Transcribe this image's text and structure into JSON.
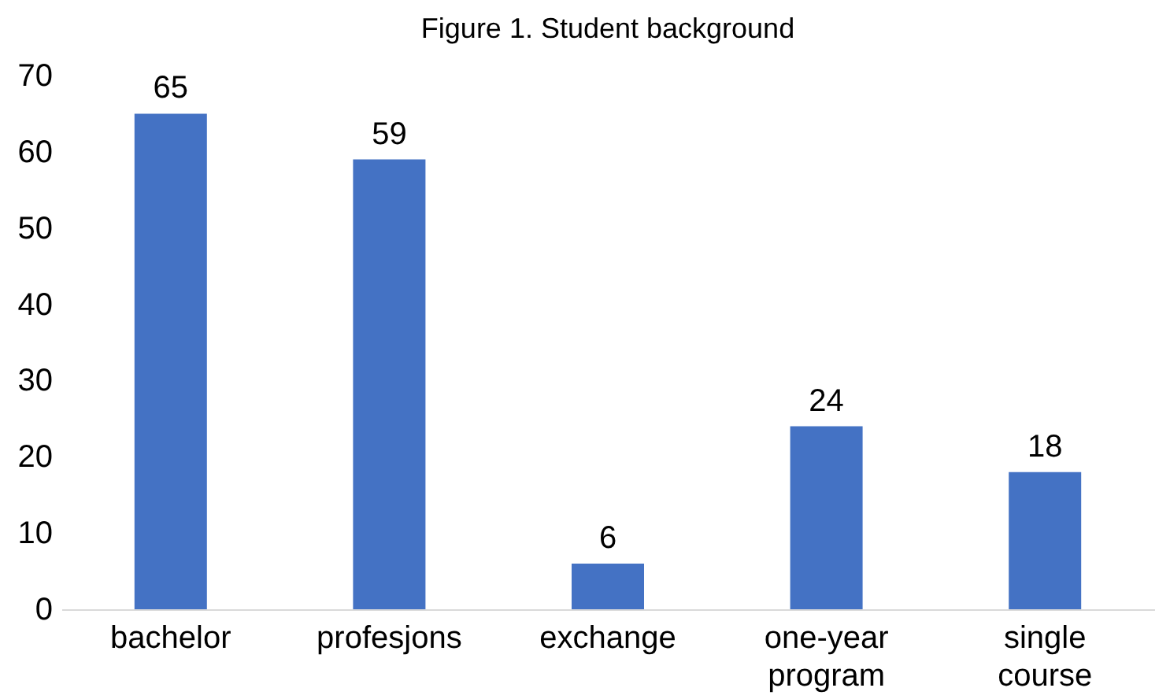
{
  "chart_data": {
    "type": "bar",
    "title": "Figure 1. Student background",
    "categories": [
      "bachelor",
      "profesjons",
      "exchange",
      "one-year program",
      "single course"
    ],
    "values": [
      65,
      59,
      6,
      24,
      18
    ],
    "color": "#4472c4",
    "ylim": [
      0,
      70
    ],
    "yticks": [
      0,
      10,
      20,
      30,
      40,
      50,
      60,
      70
    ],
    "grid": false,
    "data_labels": true
  }
}
